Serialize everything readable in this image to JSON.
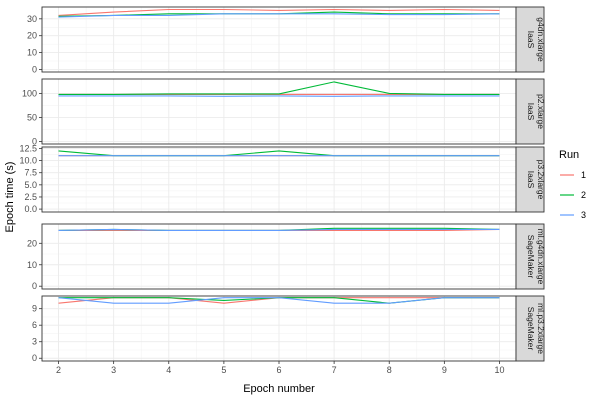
{
  "chart_data": {
    "type": "line",
    "xlabel": "Epoch number",
    "ylabel": "Epoch time (s)",
    "x": [
      2,
      3,
      4,
      5,
      6,
      7,
      8,
      9,
      10
    ],
    "x_ticks": [
      "2",
      "3",
      "4",
      "5",
      "6",
      "7",
      "8",
      "9",
      "10"
    ],
    "xlim": [
      1.7,
      10.3
    ],
    "grid": true,
    "legend": {
      "title": "Run",
      "position": "right",
      "entries": [
        {
          "name": "1",
          "color": "#F8766D"
        },
        {
          "name": "2",
          "color": "#00BA38"
        },
        {
          "name": "3",
          "color": "#619CFF"
        }
      ]
    },
    "panels": [
      {
        "strip": [
          "IaaS",
          "g4dn.xlarge"
        ],
        "ylim": [
          -1.5,
          37
        ],
        "y_ticks": [
          "0",
          "10",
          "20",
          "30"
        ],
        "y_tick_values": [
          0,
          10,
          20,
          30
        ],
        "series": [
          {
            "name": "1",
            "values": [
              32,
              34,
              35.5,
              35.5,
              35,
              35.5,
              35,
              35.5,
              35
            ]
          },
          {
            "name": "2",
            "values": [
              31.5,
              32,
              33,
              33,
              33,
              34,
              33,
              33,
              33
            ]
          },
          {
            "name": "3",
            "values": [
              31,
              32,
              32,
              33,
              33,
              33,
              32.5,
              32.5,
              33
            ]
          }
        ]
      },
      {
        "strip": [
          "IaaS",
          "p2.xlarge"
        ],
        "ylim": [
          -5,
          130
        ],
        "y_ticks": [
          "0",
          "50",
          "100"
        ],
        "y_tick_values": [
          0,
          50,
          100
        ],
        "series": [
          {
            "name": "1",
            "values": [
              98,
              98,
              98,
              98,
              98,
              98,
              98,
              98,
              98
            ]
          },
          {
            "name": "2",
            "values": [
              98,
              98,
              99,
              99,
              99,
              124,
              100,
              98,
              98
            ]
          },
          {
            "name": "3",
            "values": [
              95,
              95,
              95,
              94,
              95,
              94,
              95,
              95,
              95
            ]
          }
        ]
      },
      {
        "strip": [
          "IaaS",
          "p3.2xlarge"
        ],
        "ylim": [
          -0.6,
          12.8
        ],
        "y_ticks": [
          "0.0",
          "2.5",
          "5.0",
          "7.5",
          "10.0",
          "12.5"
        ],
        "y_tick_values": [
          0,
          2.5,
          5,
          7.5,
          10,
          12.5
        ],
        "series": [
          {
            "name": "1",
            "values": [
              11,
              11,
              11,
              11,
              11,
              11,
              11,
              11,
              11
            ]
          },
          {
            "name": "2",
            "values": [
              12,
              11,
              11,
              11,
              12,
              11,
              11,
              11,
              11
            ]
          },
          {
            "name": "3",
            "values": [
              11,
              11,
              11,
              11,
              11,
              11,
              11,
              11,
              11
            ]
          }
        ]
      },
      {
        "strip": [
          "SageMaker",
          "ml.g4dn.xlarge"
        ],
        "ylim": [
          -1.3,
          29
        ],
        "y_ticks": [
          "0",
          "10",
          "20"
        ],
        "y_tick_values": [
          0,
          10,
          20
        ],
        "series": [
          {
            "name": "1",
            "values": [
              26,
              26,
              26,
              26,
              26,
              26,
              26,
              26,
              26.5
            ]
          },
          {
            "name": "2",
            "values": [
              26,
              26.5,
              26,
              26,
              26,
              27,
              27,
              27,
              26.5
            ]
          },
          {
            "name": "3",
            "values": [
              26,
              26.5,
              26,
              26,
              26,
              26.5,
              26.5,
              26.5,
              26.5
            ]
          }
        ]
      },
      {
        "strip": [
          "SageMaker",
          "ml.p3.2xlarge"
        ],
        "ylim": [
          -0.5,
          11.3
        ],
        "y_ticks": [
          "0",
          "3",
          "6",
          "9"
        ],
        "y_tick_values": [
          0,
          3,
          6,
          9
        ],
        "series": [
          {
            "name": "1",
            "values": [
              10,
              11,
              11,
              10,
              11,
              11,
              11,
              11,
              11
            ]
          },
          {
            "name": "2",
            "values": [
              11,
              11,
              11,
              10.5,
              11,
              11,
              10,
              11,
              11
            ]
          },
          {
            "name": "3",
            "values": [
              11,
              10,
              10,
              11,
              11,
              10,
              10,
              11,
              11
            ]
          }
        ]
      }
    ]
  }
}
